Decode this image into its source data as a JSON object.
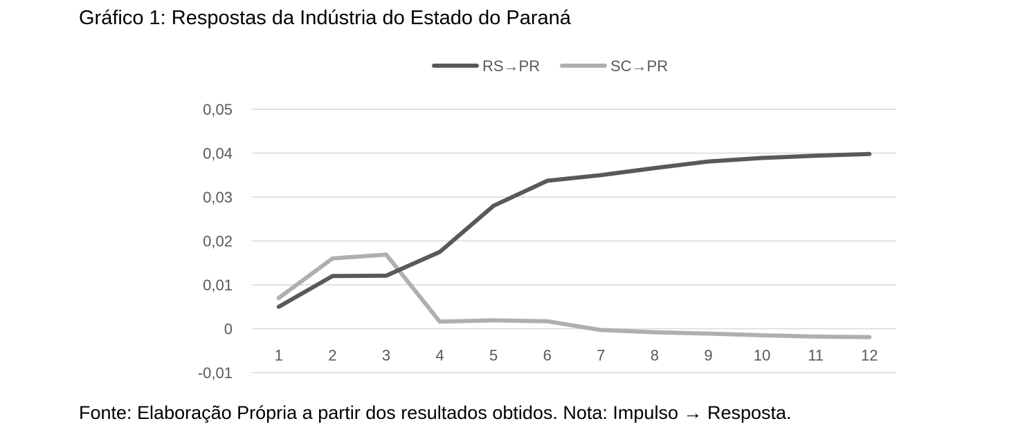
{
  "figure": {
    "title": "Gráfico 1: Respostas da Indústria do Estado do Paraná",
    "source_note": "Fonte: Elaboração Própria a partir dos resultados obtidos. Nota: Impulso → Resposta."
  },
  "chart_data": {
    "type": "line",
    "title": "",
    "xlabel": "",
    "ylabel": "",
    "categories": [
      "1",
      "2",
      "3",
      "4",
      "5",
      "6",
      "7",
      "8",
      "9",
      "10",
      "11",
      "12"
    ],
    "ylim": [
      -0.01,
      0.05
    ],
    "yticks": [
      0.05,
      0.04,
      0.03,
      0.02,
      0.01,
      0,
      -0.01
    ],
    "ytick_labels": [
      "0,05",
      "0,04",
      "0,03",
      "0,02",
      "0,01",
      "0",
      "-0,01"
    ],
    "grid": true,
    "legend_position": "top-center",
    "series": [
      {
        "name": "RS→PR",
        "color": "#595959",
        "values": [
          0.005,
          0.012,
          0.0121,
          0.0175,
          0.028,
          0.0337,
          0.035,
          0.0366,
          0.0381,
          0.0389,
          0.0394,
          0.0398
        ]
      },
      {
        "name": "SC→PR",
        "color": "#afafaf",
        "values": [
          0.007,
          0.016,
          0.0169,
          0.0016,
          0.0019,
          0.0017,
          -0.0003,
          -0.0008,
          -0.0011,
          -0.0015,
          -0.0018,
          -0.0019
        ]
      }
    ]
  }
}
